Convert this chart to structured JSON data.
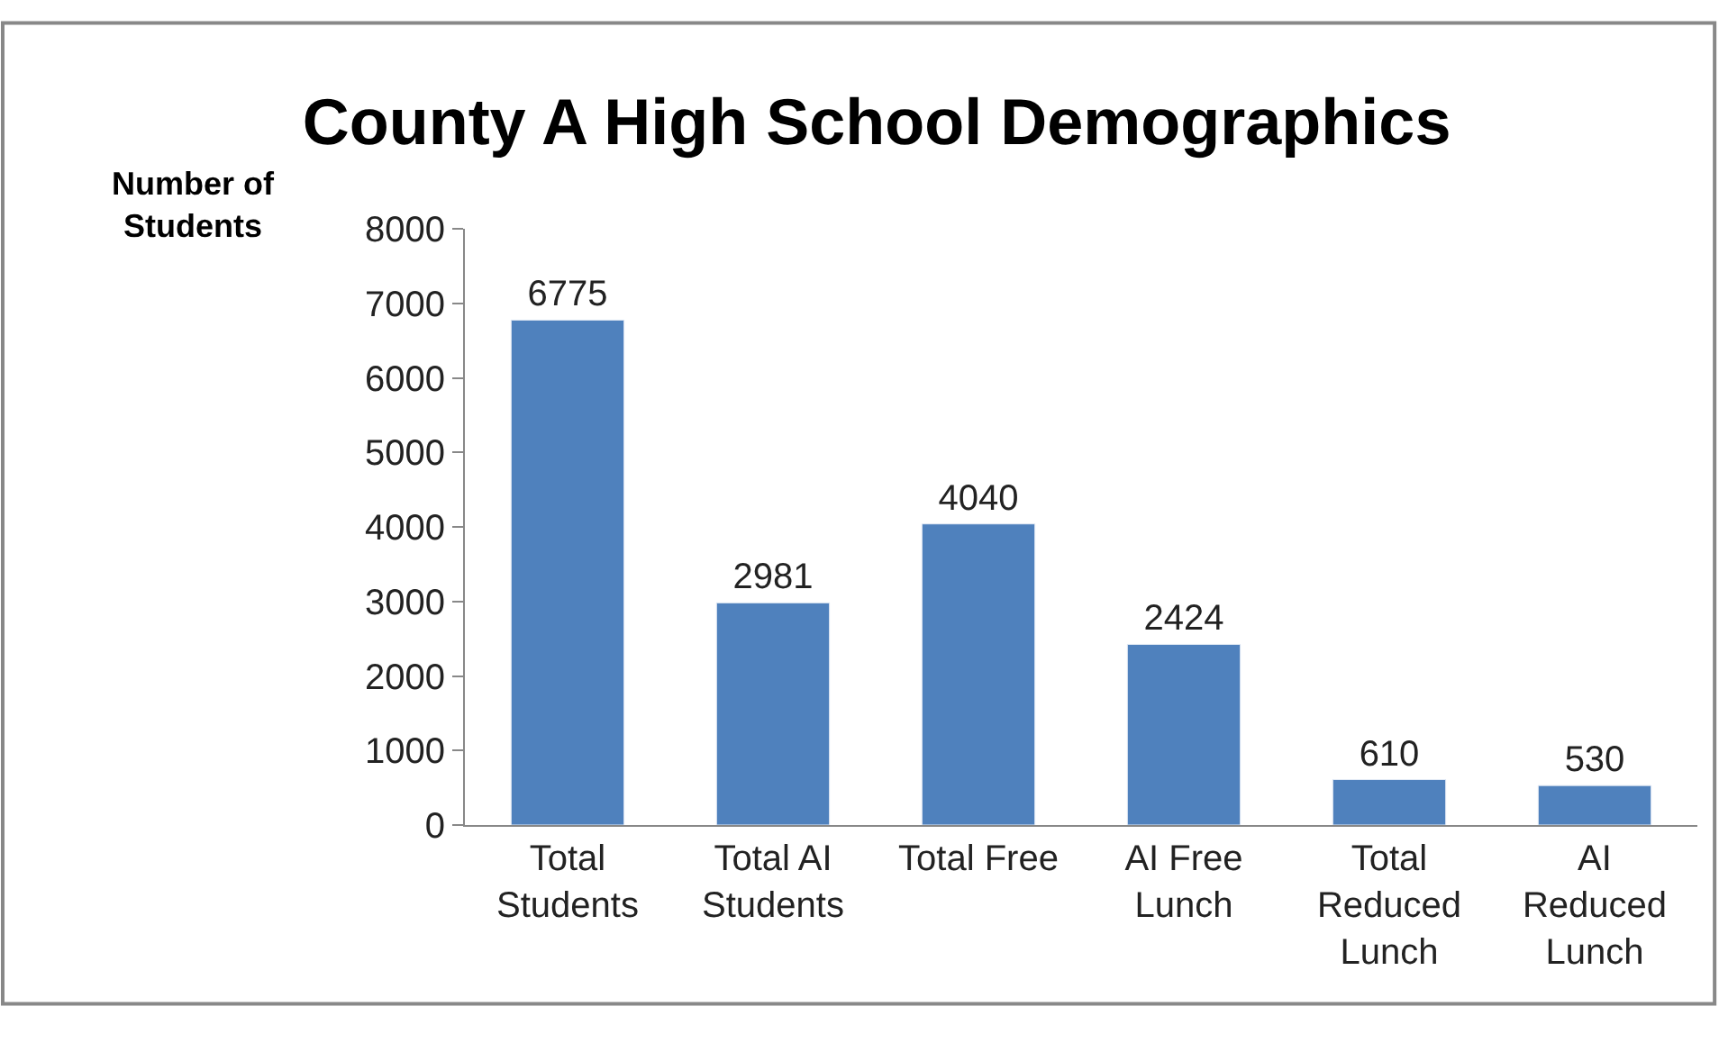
{
  "chart_data": {
    "type": "bar",
    "title": "County A High School Demographics",
    "ylabel": "Number of\nStudents",
    "categories": [
      "Total\nStudents",
      "Total AI\nStudents",
      "Total Free",
      "AI Free\nLunch",
      "Total\nReduced\nLunch",
      "AI\nReduced\nLunch"
    ],
    "values": [
      6775,
      2981,
      4040,
      2424,
      610,
      530
    ],
    "color": "#4f81bd",
    "ylim": [
      0,
      8000
    ],
    "yticks": [
      0,
      1000,
      2000,
      3000,
      4000,
      5000,
      6000,
      7000,
      8000
    ],
    "data_labels": true
  }
}
